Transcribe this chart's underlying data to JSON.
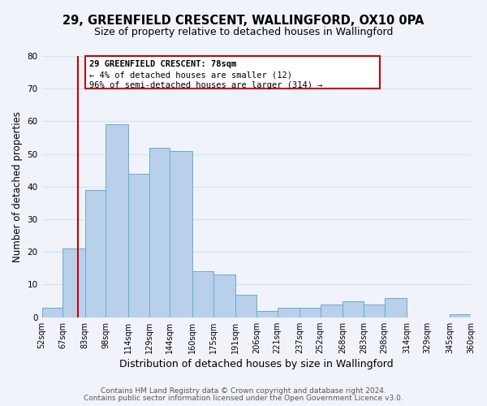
{
  "title1": "29, GREENFIELD CRESCENT, WALLINGFORD, OX10 0PA",
  "title2": "Size of property relative to detached houses in Wallingford",
  "xlabel": "Distribution of detached houses by size in Wallingford",
  "ylabel": "Number of detached properties",
  "bin_edges": [
    52,
    67,
    83,
    98,
    114,
    129,
    144,
    160,
    175,
    191,
    206,
    221,
    237,
    252,
    268,
    283,
    298,
    314,
    329,
    345,
    360
  ],
  "bar_heights": [
    3,
    21,
    39,
    59,
    44,
    52,
    51,
    14,
    13,
    7,
    2,
    3,
    3,
    4,
    5,
    4,
    6,
    0,
    0,
    1
  ],
  "bar_color": "#b8d0ea",
  "bar_edge_color": "#6aaad4",
  "vline_x": 78,
  "vline_color": "#cc0000",
  "annotation_box_color": "#cc0000",
  "annotation_text_line1": "29 GREENFIELD CRESCENT: 78sqm",
  "annotation_text_line2": "← 4% of detached houses are smaller (12)",
  "annotation_text_line3": "96% of semi-detached houses are larger (314) →",
  "ylim": [
    0,
    80
  ],
  "yticks": [
    0,
    10,
    20,
    30,
    40,
    50,
    60,
    70,
    80
  ],
  "footer1": "Contains HM Land Registry data © Crown copyright and database right 2024.",
  "footer2": "Contains public sector information licensed under the Open Government Licence v3.0.",
  "background_color": "#f0f4fa",
  "grid_color": "#d8e4f0",
  "title1_fontsize": 10.5,
  "title2_fontsize": 9,
  "tick_label_fontsize": 7,
  "ylabel_fontsize": 8.5,
  "xlabel_fontsize": 9,
  "footer_fontsize": 6.5,
  "annotation_fontsize": 7.5
}
